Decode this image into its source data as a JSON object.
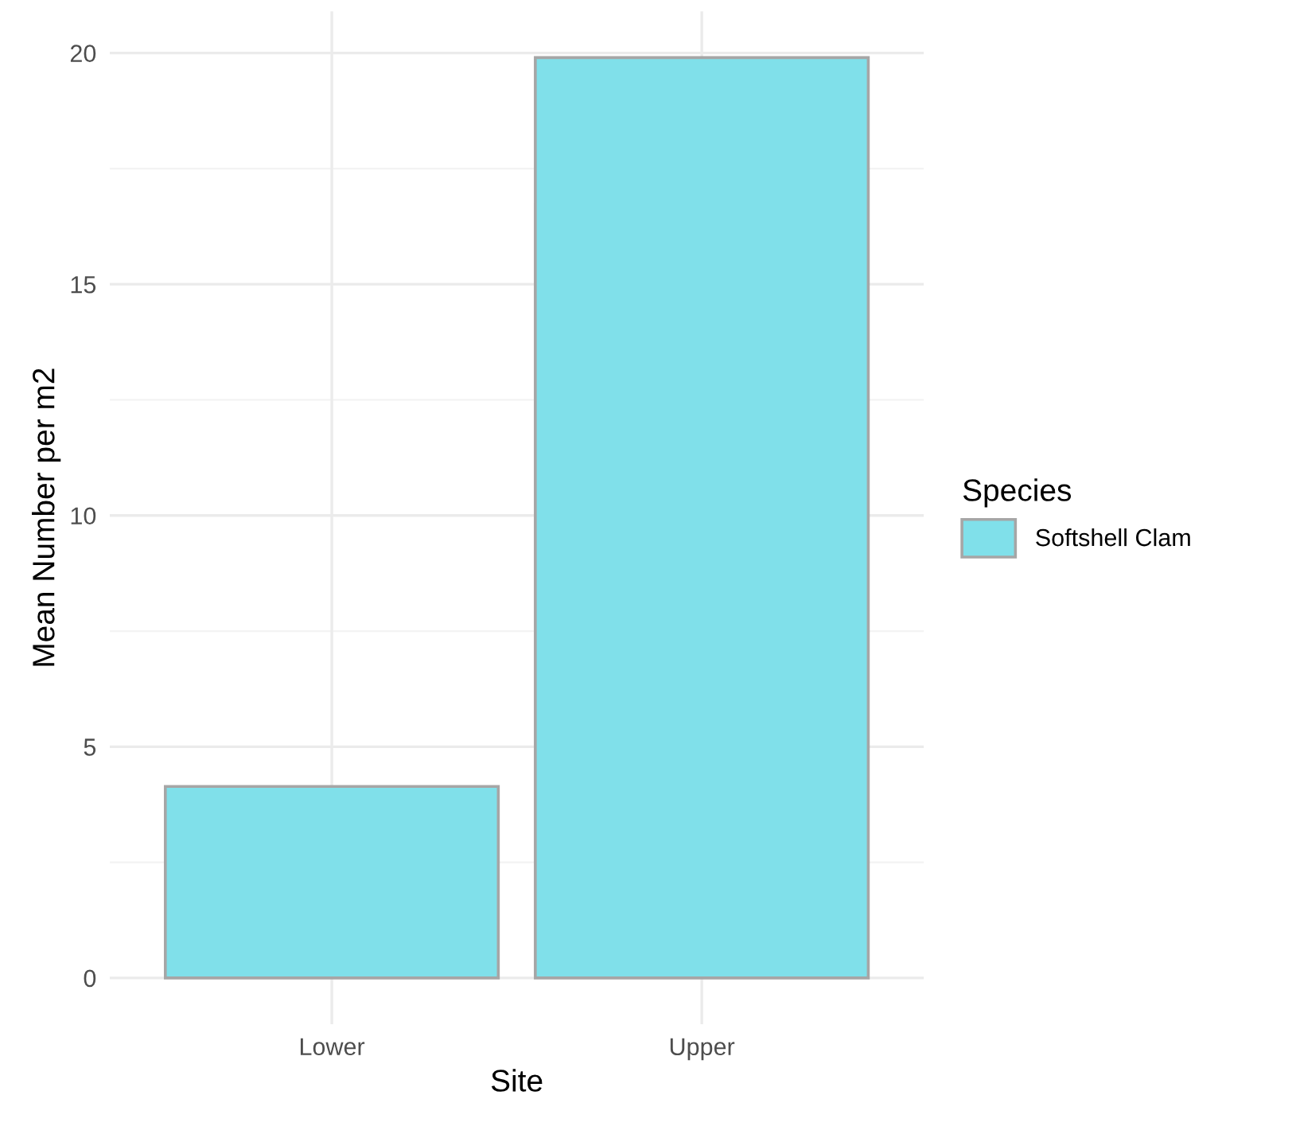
{
  "chart_data": {
    "type": "bar",
    "xlabel": "Site",
    "ylabel": "Mean Number per m2",
    "legend_title": "Species",
    "categories": [
      "Lower",
      "Upper"
    ],
    "series": [
      {
        "name": "Softshell Clam",
        "color": "#80e0ea",
        "values": [
          4.14,
          19.9
        ]
      }
    ],
    "ylim": [
      -1,
      20.9
    ],
    "yticks": [
      0,
      5,
      10,
      15,
      20
    ],
    "grid": true,
    "legend": "right"
  }
}
